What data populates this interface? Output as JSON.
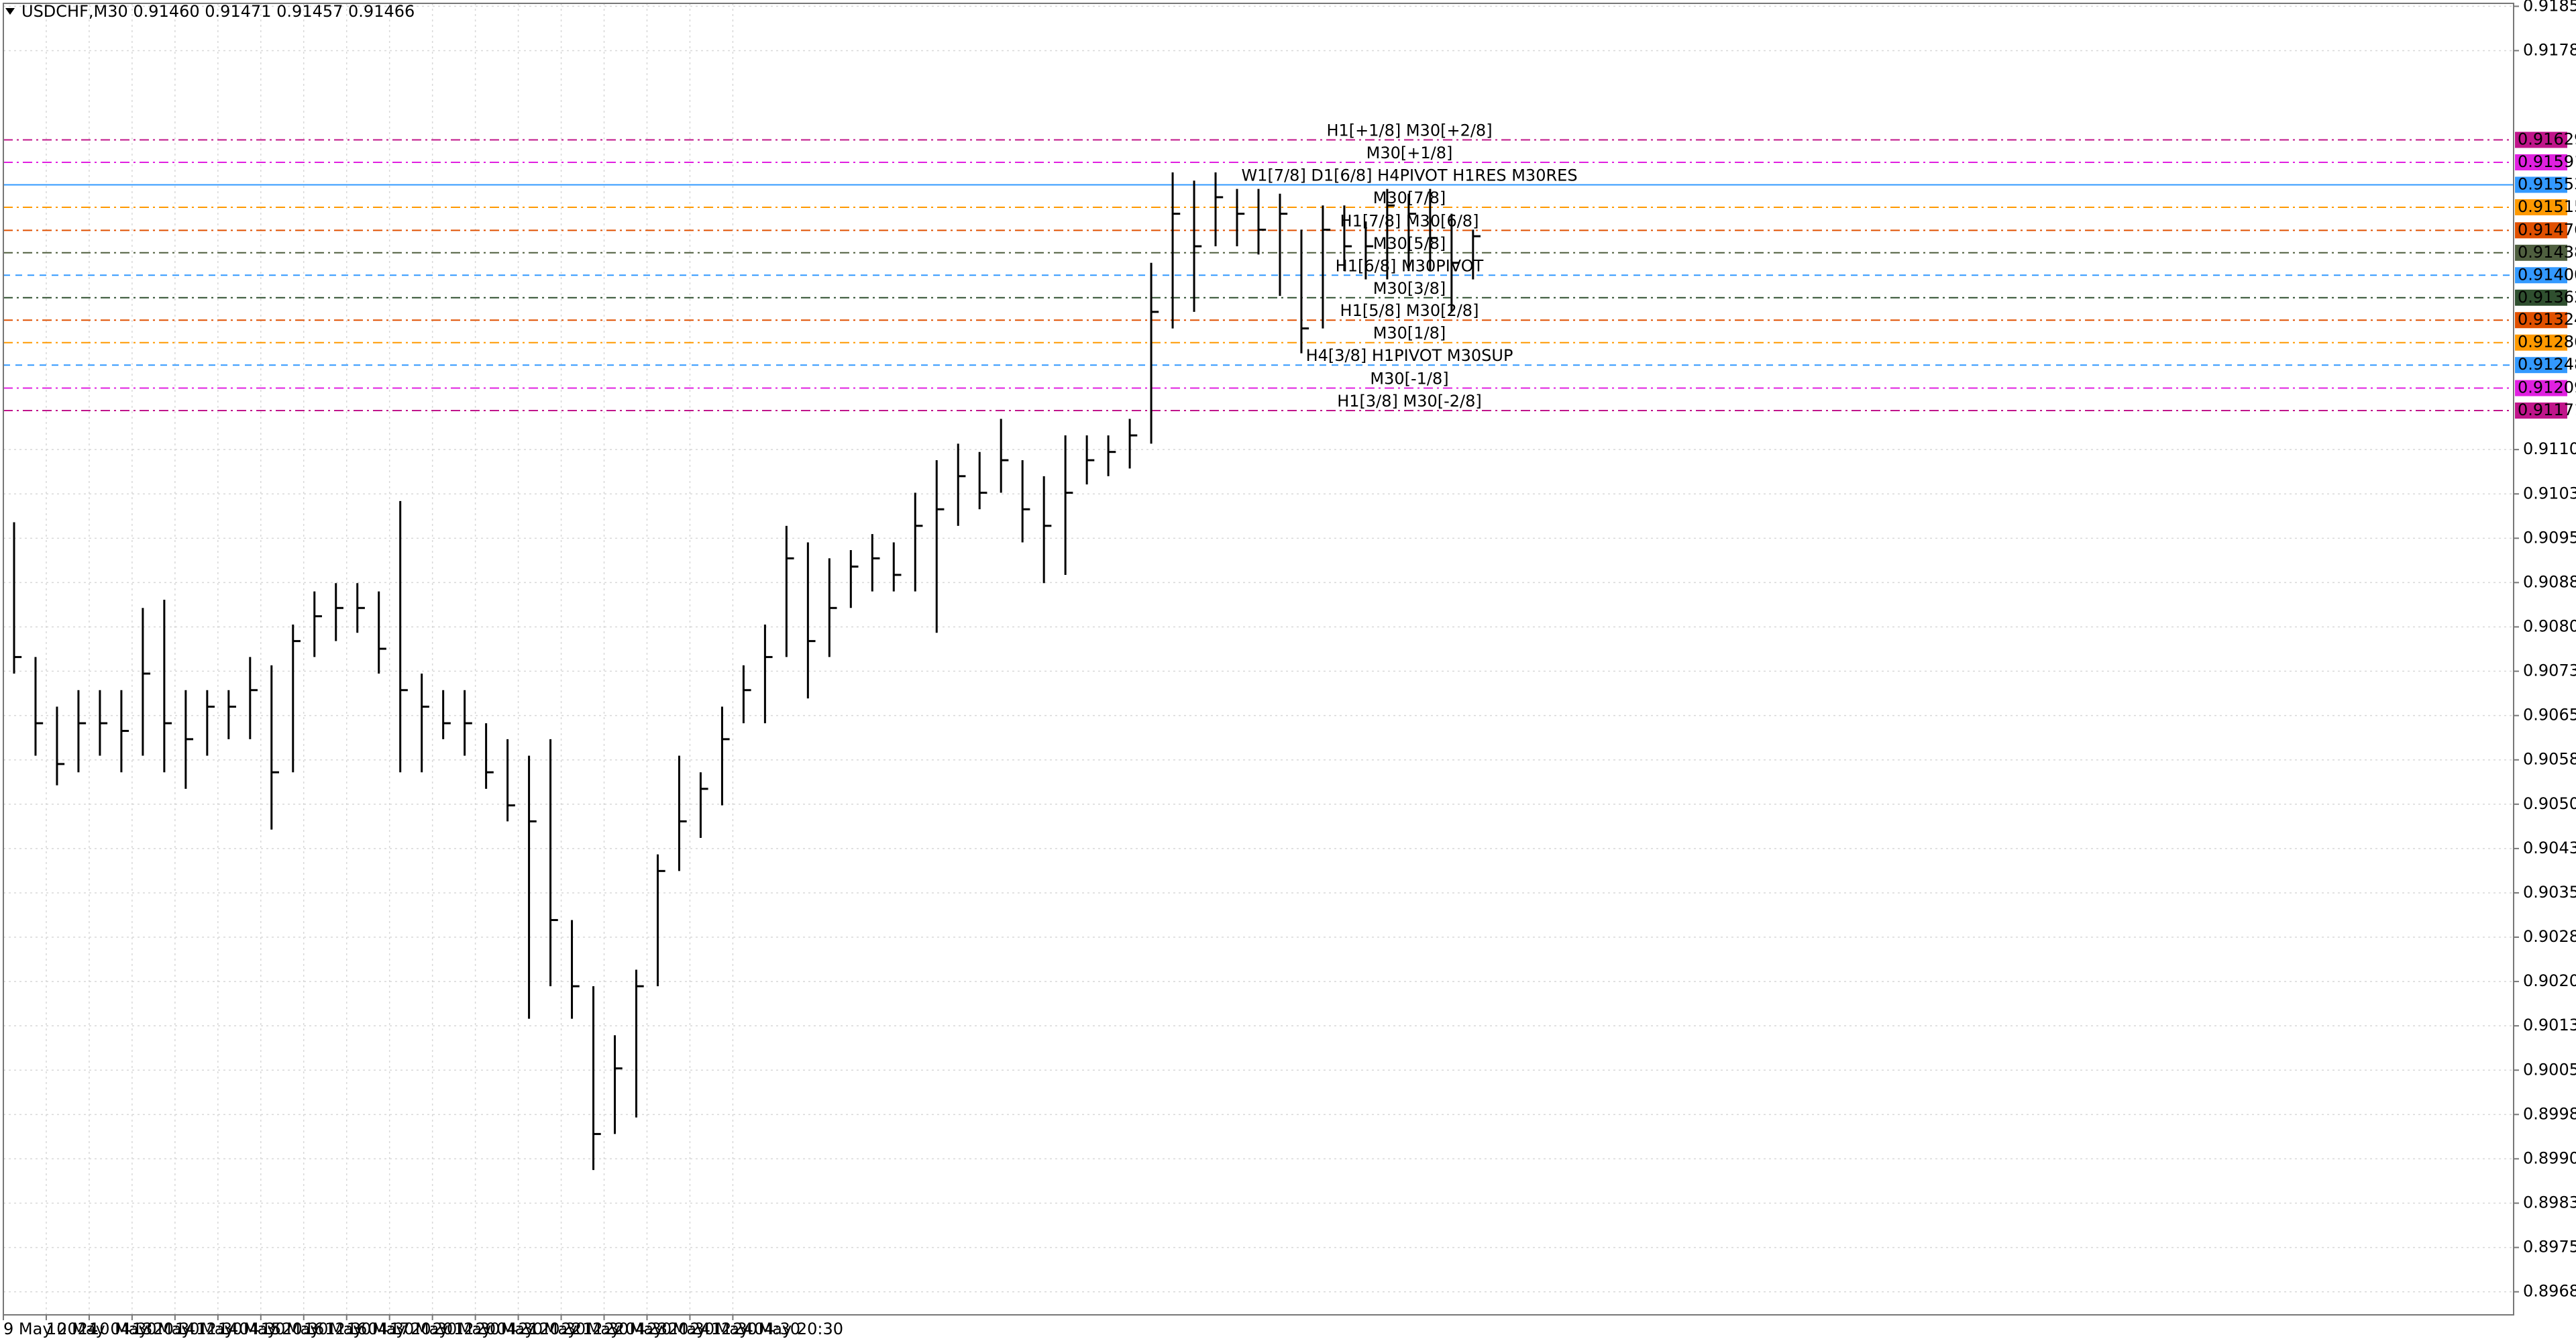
{
  "chart_data": {
    "type": "ohlc",
    "title": "USDCHF,M30  0.91460 0.91471 0.91457 0.91466",
    "color": "#000000",
    "grid": true,
    "xlim": [
      0,
      117
    ],
    "ylim": [
      0.89641,
      0.9186
    ],
    "xticks": [
      {
        "value": 0,
        "label": "9 May 2024"
      },
      {
        "value": 2,
        "label": "10 May 04:30"
      },
      {
        "value": 4,
        "label": "10 May 20:30"
      },
      {
        "value": 6,
        "label": "13 May 12:30"
      },
      {
        "value": 8,
        "label": "14 May 04:30"
      },
      {
        "value": 10,
        "label": "14 May 20:30"
      },
      {
        "value": 12,
        "label": "15 May 12:30"
      },
      {
        "value": 14,
        "label": "16 May 04:30"
      },
      {
        "value": 16,
        "label": "16 May 20:30"
      },
      {
        "value": 18,
        "label": "17 May 12:30"
      },
      {
        "value": 20,
        "label": "20 May 04:30"
      },
      {
        "value": 22,
        "label": "20 May 20:30"
      },
      {
        "value": 24,
        "label": "21 May 12:30"
      },
      {
        "value": 26,
        "label": "22 May 04:30"
      },
      {
        "value": 28,
        "label": "22 May 20:30"
      },
      {
        "value": 30,
        "label": "23 May 12:30"
      },
      {
        "value": 32,
        "label": "24 May 04:30"
      },
      {
        "value": 34,
        "label": "24 May 20:30"
      }
    ],
    "yticks": [
      0.91855,
      {
        "value": 0.9178,
        "label": "0.91780"
      },
      0.91105,
      {
        "value": 0.9103,
        "label": "0.91030"
      },
      0.90955,
      {
        "value": 0.9088,
        "label": "0.90880"
      },
      0.90805,
      {
        "value": 0.9073,
        "label": "0.90730"
      },
      0.90655,
      {
        "value": 0.9058,
        "label": "0.90580"
      },
      0.90505,
      {
        "value": 0.9043,
        "label": "0.90430"
      },
      0.90355,
      {
        "value": 0.9028,
        "label": "0.90280"
      },
      0.90205,
      {
        "value": 0.9013,
        "label": "0.90130"
      },
      0.90055,
      {
        "value": 0.8998,
        "label": "0.89980"
      },
      0.89905,
      {
        "value": 0.8983,
        "label": "0.89830"
      },
      0.89755,
      {
        "value": 0.8968,
        "label": "0.89680"
      }
    ],
    "high": [
      0.90982,
      0.90754,
      0.9067,
      0.90698,
      0.90698,
      0.90698,
      0.90837,
      0.90851,
      0.90698,
      0.90698,
      0.90698,
      0.90754,
      0.9074,
      0.90809,
      0.90865,
      0.90879,
      0.90879,
      0.90865,
      0.91018,
      0.90726,
      0.90698,
      0.90698,
      0.90642,
      0.90615,
      0.90587,
      0.90615,
      0.90309,
      0.90197,
      0.90114,
      0.90225,
      0.9042,
      0.90587,
      0.90559,
      0.9067,
      0.9074,
      0.90809,
      0.90976,
      0.90948,
      0.90921,
      0.90935,
      0.90962,
      0.90948,
      0.91032,
      0.91087,
      0.91115,
      0.91101,
      0.91157,
      0.91087,
      0.9106,
      0.91129,
      0.91129,
      0.91129,
      0.91157,
      0.91421,
      0.91574,
      0.9156,
      0.91574,
      0.91546,
      0.91546,
      0.91538,
      0.91477,
      0.91518,
      0.91518,
      0.91491,
      0.91546,
      0.91538,
      0.91546,
      0.91504,
      0.91477
    ],
    "low": [
      0.90726,
      0.90587,
      0.90537,
      0.90559,
      0.90587,
      0.90559,
      0.90587,
      0.90559,
      0.90531,
      0.90587,
      0.90615,
      0.90615,
      0.90462,
      0.90559,
      0.90754,
      0.90781,
      0.90795,
      0.90726,
      0.90559,
      0.90559,
      0.90615,
      0.90587,
      0.90531,
      0.90476,
      0.90142,
      0.90197,
      0.90142,
      0.89886,
      0.89947,
      0.89975,
      0.90197,
      0.90392,
      0.90448,
      0.90503,
      0.90642,
      0.90642,
      0.90754,
      0.90684,
      0.90754,
      0.90837,
      0.90865,
      0.90865,
      0.90865,
      0.90795,
      0.90976,
      0.91004,
      0.91032,
      0.90948,
      0.90879,
      0.90893,
      0.91046,
      0.9106,
      0.91073,
      0.91115,
      0.9131,
      0.91338,
      0.91449,
      0.91449,
      0.91435,
      0.91365,
      0.91268,
      0.9131,
      0.91407,
      0.91393,
      0.91393,
      0.91407,
      0.91407,
      0.91338,
      0.91393
    ],
    "close": [
      0.90754,
      0.90642,
      0.90573,
      0.90642,
      0.90642,
      0.90629,
      0.90726,
      0.90642,
      0.90615,
      0.9067,
      0.9067,
      0.90698,
      0.90559,
      0.90781,
      0.90823,
      0.90837,
      0.90837,
      0.90768,
      0.90698,
      0.9067,
      0.90642,
      0.90642,
      0.90559,
      0.90503,
      0.90476,
      0.90309,
      0.90197,
      0.89947,
      0.90058,
      0.90197,
      0.90392,
      0.90476,
      0.90531,
      0.90615,
      0.90698,
      0.90754,
      0.90921,
      0.90781,
      0.90837,
      0.90907,
      0.90921,
      0.90893,
      0.90976,
      0.91004,
      0.9106,
      0.91032,
      0.91087,
      0.91004,
      0.90976,
      0.91032,
      0.91087,
      0.91101,
      0.91129,
      0.91338,
      0.91504,
      0.91449,
      0.91532,
      0.91504,
      0.91477,
      0.91504,
      0.9131,
      0.91477,
      0.91449,
      0.91449,
      0.91518,
      0.91504,
      0.91463,
      0.91421,
      0.91466
    ],
    "levels": [
      {
        "value": 0.91629,
        "label": "H1[+1/8] M30[+2/8]",
        "color": "#c0158a",
        "style": "dashdot"
      },
      {
        "value": 0.91591,
        "label": "M30[+1/8]",
        "color": "#e020e0",
        "style": "dashdot"
      },
      {
        "value": 0.91553,
        "label": "W1[7/8] D1[6/8] H4PIVOT H1RES M30RES",
        "color": "#3399ff",
        "style": "solid"
      },
      {
        "value": 0.91515,
        "label": "M30[7/8]",
        "color": "#ff9900",
        "style": "dashdot"
      },
      {
        "value": 0.91476,
        "label": "H1[7/8] M30[6/8]",
        "color": "#e05000",
        "style": "dashdot"
      },
      {
        "value": 0.91438,
        "label": "M30[5/8]",
        "color": "#4f5f3f",
        "style": "dashdot"
      },
      {
        "value": 0.914,
        "label": "H1[6/8] M30PIVOT",
        "color": "#3399ff",
        "style": "dashed",
        "tag": "0.91400"
      },
      {
        "value": 0.91362,
        "label": "M30[3/8]",
        "color": "#2f4f2f",
        "style": "dashdot"
      },
      {
        "value": 0.91324,
        "label": "H1[5/8] M30[2/8]",
        "color": "#e05000",
        "style": "dashdot"
      },
      {
        "value": 0.91286,
        "label": "M30[1/8]",
        "color": "#ff9900",
        "style": "dashdot"
      },
      {
        "value": 0.91248,
        "label": "H4[3/8] H1PIVOT M30SUP",
        "color": "#3399ff",
        "style": "dashed"
      },
      {
        "value": 0.91209,
        "label": "M30[-1/8]",
        "color": "#e020e0",
        "style": "dashdot"
      },
      {
        "value": 0.91171,
        "label": "H1[3/8] M30[-2/8]",
        "color": "#c0158a",
        "style": "dashdot"
      }
    ]
  }
}
